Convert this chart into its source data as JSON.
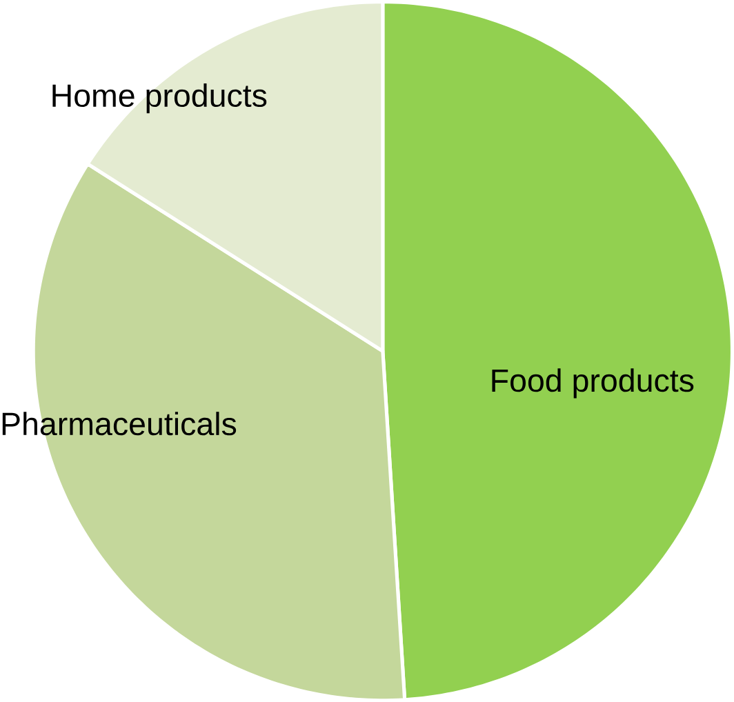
{
  "chart_data": {
    "type": "pie",
    "categories": [
      "Food products",
      "Pharmaceuticals",
      "Home products"
    ],
    "values": [
      49,
      35,
      16
    ],
    "colors": [
      "#92d050",
      "#c4d79b",
      "#e4ebd1"
    ]
  }
}
